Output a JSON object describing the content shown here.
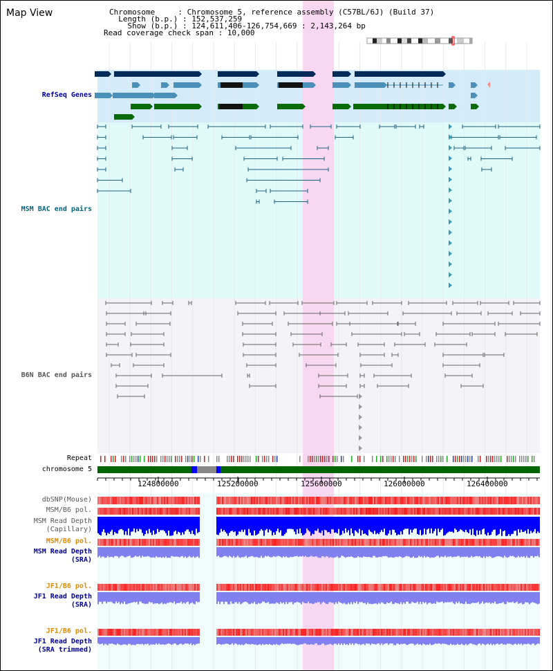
{
  "header": {
    "title": "Map View",
    "chromosome_label": "Chromosome     : ",
    "chromosome_value": "Chromosome 5, reference assembly (C57BL/6J) (Build 37)",
    "length_label": "  Length (b.p.) : ",
    "length_value": "152,537,259",
    "show_label": "    Show (b.p.) : ",
    "show_value": "124,611,406-126,754,669 : 2,143,264 bp",
    "span_label": "Read coverage check span : ",
    "span_value": "10,000"
  },
  "tracks": {
    "refseq": {
      "label": "RefSeq Genes",
      "color": "#000099"
    },
    "msm_bac": {
      "label": "MSM BAC end pairs",
      "color": "#006680"
    },
    "b6n_bac": {
      "label": "B6N BAC end pairs",
      "color": "#555555"
    },
    "repeat": {
      "label": "Repeat",
      "color": "#000000"
    },
    "chromosome": {
      "label": "chromosome 5",
      "color": "#000000"
    },
    "dbsnp": {
      "label": "dbSNP(Mouse)",
      "color": "#555555"
    },
    "msm_b6_pol_1": {
      "label": "MSM/B6 pol.",
      "color": "#555555"
    },
    "msm_read_depth_cap": {
      "label": "MSM Read Depth\n(Capillary)",
      "color": "#555555"
    },
    "msm_b6_pol_2": {
      "label": "MSM/B6 pol.",
      "color": "#e08a00"
    },
    "msm_read_depth_sra": {
      "label": "MSM Read Depth\n(SRA)",
      "color": "#000099"
    },
    "jf1_b6_pol_1": {
      "label": "JF1/B6 pol.",
      "color": "#e08a00"
    },
    "jf1_read_depth_sra": {
      "label": "JF1 Read Depth\n(SRA)",
      "color": "#000099"
    },
    "jf1_b6_pol_2": {
      "label": "JF1/B6 pol.",
      "color": "#e08a00"
    },
    "jf1_read_depth_trim": {
      "label": "JF1 Read Depth\n(SRA trimmed)",
      "color": "#000099"
    }
  },
  "axis": {
    "ticks": [
      "124800000",
      "125200000",
      "125600000",
      "126000000",
      "126400000"
    ]
  },
  "colors": {
    "highlight": "#f8d8f0",
    "refseq_bg": "#d4ecfa",
    "msm_bg": "#e0fafa",
    "b6n_bg": "#f4f4f8",
    "gene_navy": "#002a5a",
    "gene_steel": "#4a90b8",
    "gene_green": "#0a6a0a",
    "chrom_green": "#006400",
    "depth_blue": "#0000ff",
    "depth_lavender": "#8080f0",
    "snp_red": "#f08080"
  }
}
